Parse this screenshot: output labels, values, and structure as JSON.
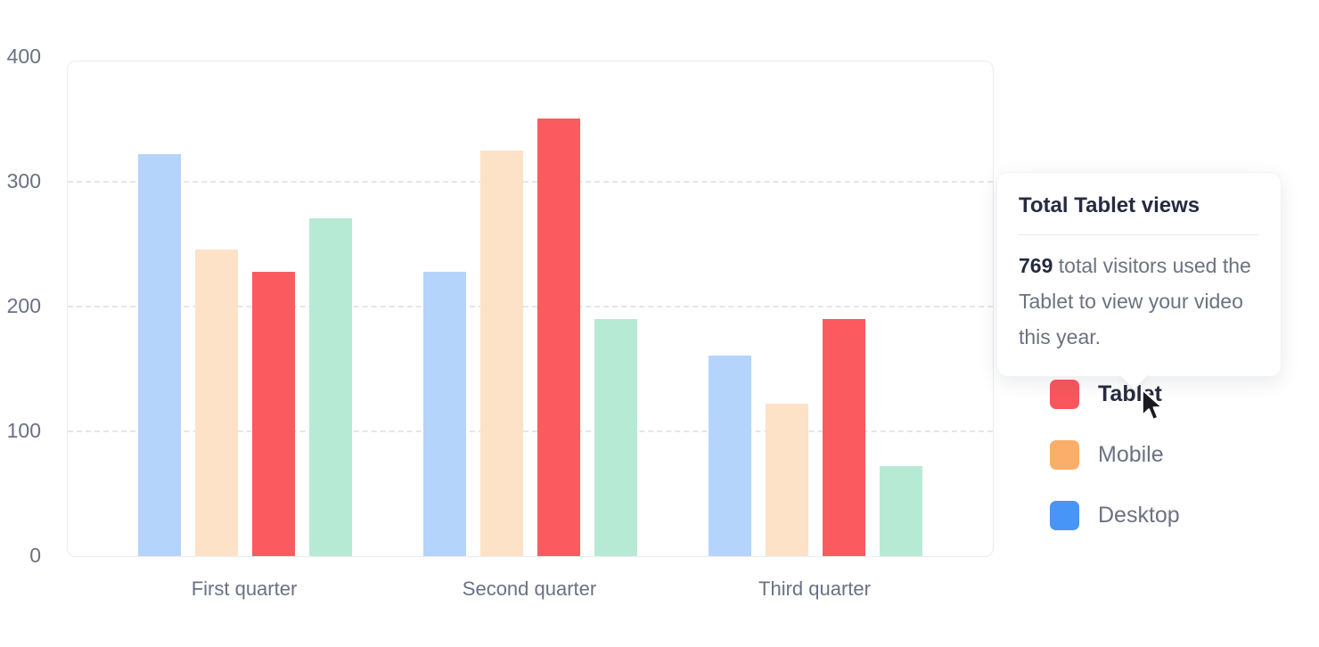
{
  "chart_data": {
    "type": "bar",
    "categories": [
      "First quarter",
      "Second quarter",
      "Third quarter"
    ],
    "series": [
      {
        "name": "Desktop",
        "values": [
          322,
          228,
          161
        ],
        "bar_color": "#B5D4FB",
        "legend_color": "#4795F7",
        "faded": true
      },
      {
        "name": "Mobile",
        "values": [
          246,
          325,
          122
        ],
        "bar_color": "#FDE2C8",
        "legend_color": "#FBAE67",
        "faded": true
      },
      {
        "name": "Tablet",
        "values": [
          228,
          351,
          190
        ],
        "bar_color": "#FB5A5F",
        "legend_color": "#F9575D",
        "faded": false,
        "highlighted": true
      },
      {
        "name": "",
        "values": [
          271,
          190,
          72
        ],
        "bar_color": "#B7EAD5",
        "legend_color": null,
        "faded": true
      }
    ],
    "title": "",
    "xlabel": "",
    "ylabel": "",
    "ylim": [
      0,
      400
    ],
    "y_ticks": [
      400,
      300,
      200,
      100,
      0
    ],
    "grid": "horizontal-dashed",
    "legend_position": "right"
  },
  "tooltip": {
    "title": "Total Tablet views",
    "value": "769",
    "body_rest": " total visitors used the Tablet to view your video this year."
  },
  "legend": {
    "items": [
      {
        "label": "Tablet",
        "color": "#F9575D",
        "active": true
      },
      {
        "label": "Mobile",
        "color": "#FBAE67",
        "active": false
      },
      {
        "label": "Desktop",
        "color": "#4795F7",
        "active": false
      }
    ]
  },
  "colors": {
    "axis_text": "#6A7183",
    "grid_line": "#E4E6EB",
    "plot_border": "#EAECF0",
    "dark_text": "#262B40",
    "muted_text": "#6B7280"
  }
}
